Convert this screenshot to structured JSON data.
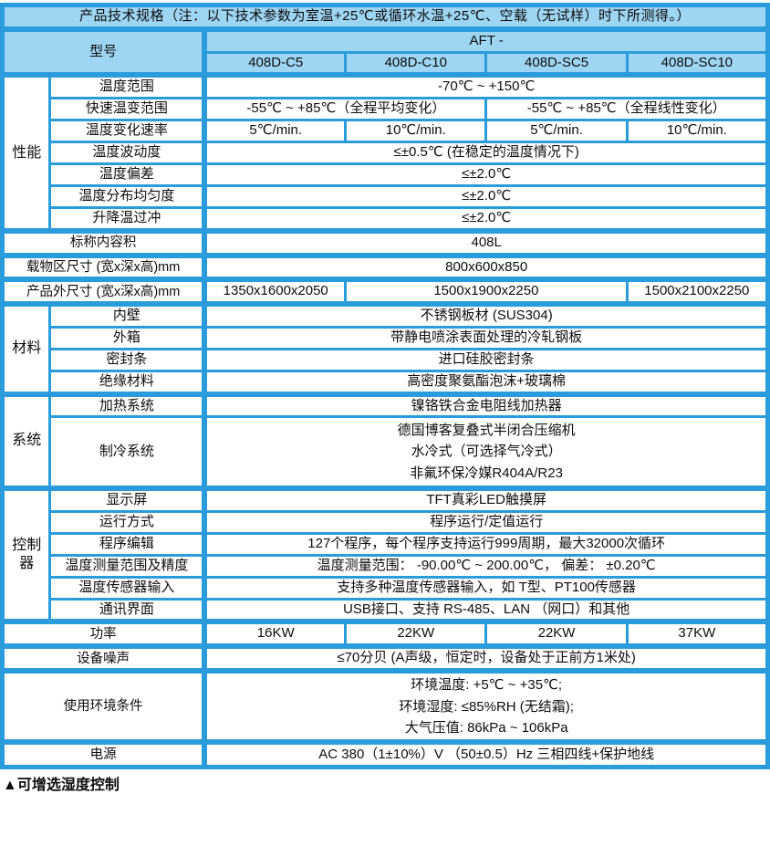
{
  "title": "产品技术规格（注：以下技术参数为室温+25℃或循环水温+25℃、空载（无试样）时下所测得。）",
  "model_header": {
    "label": "型号",
    "series": "AFT -",
    "models": [
      "408D-C5",
      "408D-C10",
      "408D-SC5",
      "408D-SC10"
    ]
  },
  "groups": {
    "performance": "性能",
    "material": "材料",
    "system": "系统",
    "controller": "控制器"
  },
  "rows": {
    "temp_range": {
      "label": "温度范围",
      "value": "-70℃ ~ +150℃"
    },
    "fast_change": {
      "label": "快速温变范围",
      "value_left": "-55℃ ~ +85℃（全程平均变化）",
      "value_right": "-55℃ ~ +85℃（全程线性变化）"
    },
    "change_rate": {
      "label": "温度变化速率",
      "values": [
        "5℃/min.",
        "10℃/min.",
        "5℃/min.",
        "10℃/min."
      ]
    },
    "fluctuation": {
      "label": "温度波动度",
      "value": "≤±0.5℃ (在稳定的温度情况下)"
    },
    "deviation": {
      "label": "温度偏差",
      "value": "≤±2.0℃"
    },
    "uniformity": {
      "label": "温度分布均匀度",
      "value": "≤±2.0℃"
    },
    "overshoot": {
      "label": "升降温过冲",
      "value": "≤±2.0℃"
    },
    "volume": {
      "label": "标称内容积",
      "value": "408L"
    },
    "chamber_size": {
      "label": "载物区尺寸 (宽x深x高)mm",
      "value": "800x600x850"
    },
    "outer_size": {
      "label": "产品外尺寸 (宽x深x高)mm",
      "values": [
        "1350x1600x2050",
        "1500x1900x2250",
        "1500x2100x2250"
      ]
    },
    "inner_wall": {
      "label": "内壁",
      "value": "不锈钢板材 (SUS304)"
    },
    "outer_box": {
      "label": "外箱",
      "value": "带静电喷涂表面处理的冷轧钢板"
    },
    "seal": {
      "label": "密封条",
      "value": "进口硅胶密封条"
    },
    "insulation": {
      "label": "绝缘材料",
      "value": "高密度聚氨酯泡沫+玻璃棉"
    },
    "heating": {
      "label": "加热系统",
      "value": "镍铬铁合金电阻线加热器"
    },
    "cooling": {
      "label": "制冷系统",
      "lines": [
        "德国博客复叠式半闭合压缩机",
        "水冷式（可选择气冷式）",
        "非氟环保冷媒R404A/R23"
      ]
    },
    "display": {
      "label": "显示屏",
      "value": "TFT真彩LED触摸屏"
    },
    "run_mode": {
      "label": "运行方式",
      "value": "程序运行/定值运行"
    },
    "programming": {
      "label": "程序编辑",
      "value": "127个程序，每个程序支持运行999周期，最大32000次循环"
    },
    "measure_range": {
      "label": "温度测量范围及精度",
      "value": "温度测量范围： -90.00℃ ~ 200.00℃， 偏差： ±0.20℃"
    },
    "sensor_input": {
      "label": "温度传感器输入",
      "value": "支持多种温度传感器输入，如 T型、PT100传感器"
    },
    "comm": {
      "label": "通讯界面",
      "value": "USB接口、支持 RS-485、LAN （网口）和其他"
    },
    "power_rating": {
      "label": "功率",
      "values": [
        "16KW",
        "22KW",
        "22KW",
        "37KW"
      ]
    },
    "noise": {
      "label": "设备噪声",
      "value": "≤70分贝 (A声级，恒定时，设备处于正前方1米处)"
    },
    "environment": {
      "label": "使用环境条件",
      "lines": [
        "环境温度: +5℃ ~ +35℃;",
        "环境湿度: ≤85%RH (无结霜);",
        "大气压值: 86kPa ~ 106kPa"
      ]
    },
    "power_supply": {
      "label": "电源",
      "value": "AC 380（1±10%）V （50±0.5）Hz 三相四线+保护地线"
    }
  },
  "footnote": "▲可增选湿度控制",
  "colors": {
    "border": "#2A9CDC",
    "header_bg": "#9ED5F3",
    "cell_bg": "#FFFFFF",
    "text": "#0D0D0D"
  }
}
